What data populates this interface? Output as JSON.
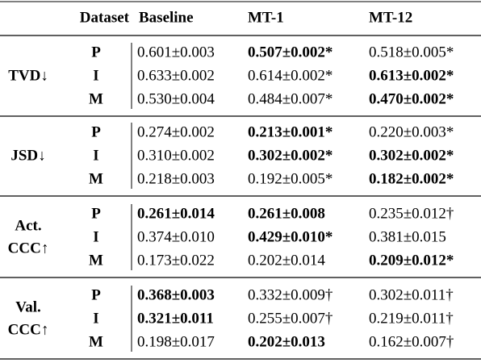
{
  "header": {
    "columns": [
      "Dataset",
      "Baseline",
      "MT-1",
      "MT-12"
    ]
  },
  "groups": [
    {
      "metric": [
        "TVD↓"
      ],
      "rows": [
        {
          "dataset": "P",
          "cells": [
            {
              "text": "0.601±0.003",
              "bold": false
            },
            {
              "text": "0.507±0.002*",
              "bold": true
            },
            {
              "text": "0.518±0.005*",
              "bold": false
            }
          ]
        },
        {
          "dataset": "I",
          "cells": [
            {
              "text": "0.633±0.002",
              "bold": false
            },
            {
              "text": "0.614±0.002*",
              "bold": false
            },
            {
              "text": "0.613±0.002*",
              "bold": true
            }
          ]
        },
        {
          "dataset": "M",
          "cells": [
            {
              "text": "0.530±0.004",
              "bold": false
            },
            {
              "text": "0.484±0.007*",
              "bold": false
            },
            {
              "text": "0.470±0.002*",
              "bold": true
            }
          ]
        }
      ]
    },
    {
      "metric": [
        "JSD↓"
      ],
      "rows": [
        {
          "dataset": "P",
          "cells": [
            {
              "text": "0.274±0.002",
              "bold": false
            },
            {
              "text": "0.213±0.001*",
              "bold": true
            },
            {
              "text": "0.220±0.003*",
              "bold": false
            }
          ]
        },
        {
          "dataset": "I",
          "cells": [
            {
              "text": "0.310±0.002",
              "bold": false
            },
            {
              "text": "0.302±0.002*",
              "bold": true
            },
            {
              "text": "0.302±0.002*",
              "bold": true
            }
          ]
        },
        {
          "dataset": "M",
          "cells": [
            {
              "text": "0.218±0.003",
              "bold": false
            },
            {
              "text": "0.192±0.005*",
              "bold": false
            },
            {
              "text": "0.182±0.002*",
              "bold": true
            }
          ]
        }
      ]
    },
    {
      "metric": [
        "Act.",
        "CCC↑"
      ],
      "rows": [
        {
          "dataset": "P",
          "cells": [
            {
              "text": "0.261±0.014",
              "bold": true
            },
            {
              "text": "0.261±0.008",
              "bold": true
            },
            {
              "text": "0.235±0.012†",
              "bold": false
            }
          ]
        },
        {
          "dataset": "I",
          "cells": [
            {
              "text": "0.374±0.010",
              "bold": false
            },
            {
              "text": "0.429±0.010*",
              "bold": true
            },
            {
              "text": "0.381±0.015",
              "bold": false
            }
          ]
        },
        {
          "dataset": "M",
          "cells": [
            {
              "text": "0.173±0.022",
              "bold": false
            },
            {
              "text": "0.202±0.014",
              "bold": false
            },
            {
              "text": "0.209±0.012*",
              "bold": true
            }
          ]
        }
      ]
    },
    {
      "metric": [
        "Val.",
        "CCC↑"
      ],
      "rows": [
        {
          "dataset": "P",
          "cells": [
            {
              "text": "0.368±0.003",
              "bold": true
            },
            {
              "text": "0.332±0.009†",
              "bold": false
            },
            {
              "text": "0.302±0.011†",
              "bold": false
            }
          ]
        },
        {
          "dataset": "I",
          "cells": [
            {
              "text": "0.321±0.011",
              "bold": true
            },
            {
              "text": "0.255±0.007†",
              "bold": false
            },
            {
              "text": "0.219±0.011†",
              "bold": false
            }
          ]
        },
        {
          "dataset": "M",
          "cells": [
            {
              "text": "0.198±0.017",
              "bold": false
            },
            {
              "text": "0.202±0.013",
              "bold": true
            },
            {
              "text": "0.162±0.007†",
              "bold": false
            }
          ]
        }
      ]
    }
  ]
}
